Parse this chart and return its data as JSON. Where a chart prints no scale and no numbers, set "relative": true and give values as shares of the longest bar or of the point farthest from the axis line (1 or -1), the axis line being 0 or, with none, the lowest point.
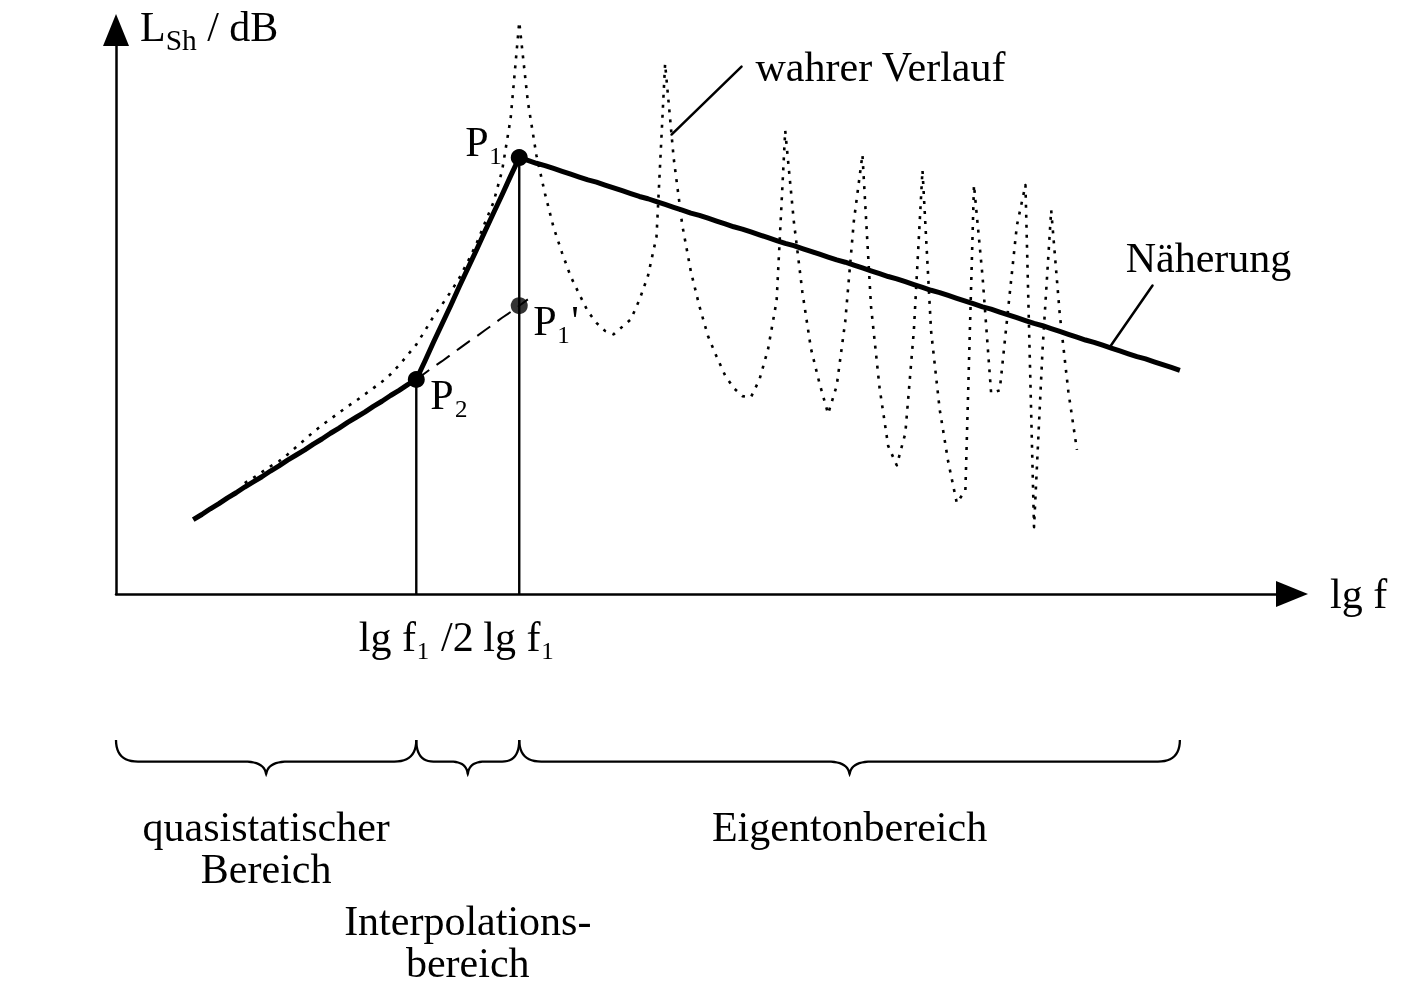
{
  "chart_data": {
    "type": "line",
    "relative": true,
    "xlabel": "lg f",
    "ylabel": "L$_{Sh}$ / dB",
    "categories": [
      null,
      null,
      null,
      null,
      null,
      null,
      null,
      null,
      null,
      null,
      null,
      null,
      null,
      null,
      null,
      null,
      null,
      null,
      null,
      null,
      null,
      null,
      null,
      null,
      null,
      null,
      null,
      null,
      null,
      null,
      null,
      null,
      null,
      null,
      null,
      "lg f₁ /2",
      null,
      null,
      null,
      null,
      null,
      null,
      null,
      null,
      null,
      null,
      null,
      "lg f₁",
      null,
      null,
      null,
      null,
      null,
      null,
      null,
      null,
      null,
      null,
      null,
      null,
      null,
      null,
      null,
      null,
      null,
      null,
      null,
      null,
      null,
      null,
      null,
      null,
      null,
      null,
      null,
      null,
      null,
      null,
      null,
      null,
      null,
      null,
      null,
      null,
      null,
      null,
      null,
      null,
      null,
      null,
      null,
      null,
      null,
      null,
      null,
      null,
      null,
      null,
      null,
      null,
      null,
      null,
      null,
      null,
      null,
      null,
      null,
      null,
      null,
      null,
      null,
      null,
      null,
      null,
      null,
      null,
      null,
      null,
      null,
      null,
      null,
      null,
      null,
      null,
      null,
      null,
      null,
      null,
      null,
      null,
      null,
      null,
      null,
      null,
      null,
      null,
      null,
      null,
      null
    ],
    "legend": false,
    "grid": false,
    "marker": "none",
    "series": [
      {
        "name": "Näherung",
        "color": "#000000",
        "line_style": "solid",
        "values": [
          null,
          null,
          null,
          null,
          null,
          null,
          null,
          null,
          null,
          0.13,
          0.139,
          0.149,
          0.158,
          0.168,
          0.177,
          0.187,
          0.196,
          0.205,
          0.215,
          0.224,
          0.234,
          0.243,
          0.252,
          0.262,
          0.271,
          0.281,
          0.29,
          0.3,
          0.309,
          0.318,
          0.328,
          0.337,
          0.347,
          0.356,
          0.366,
          0.375,
          0.407,
          0.44,
          0.472,
          0.504,
          0.537,
          0.569,
          0.601,
          0.634,
          0.666,
          0.698,
          0.731,
          0.763,
          0.758,
          0.753,
          0.749,
          0.744,
          0.739,
          0.734,
          0.729,
          0.724,
          0.72,
          0.715,
          0.71,
          0.705,
          0.7,
          0.695,
          0.691,
          0.686,
          0.681,
          0.676,
          0.671,
          0.666,
          0.662,
          0.657,
          0.652,
          0.647,
          0.642,
          0.638,
          0.633,
          0.628,
          0.623,
          0.618,
          0.613,
          0.609,
          0.604,
          0.599,
          0.594,
          0.589,
          0.584,
          0.58,
          0.575,
          0.57,
          0.565,
          0.56,
          0.555,
          0.551,
          0.546,
          0.541,
          0.536,
          0.531,
          0.527,
          0.522,
          0.517,
          0.512,
          0.507,
          0.502,
          0.498,
          0.493,
          0.488,
          0.483,
          0.478,
          0.473,
          0.469,
          0.464,
          0.459,
          0.454,
          0.449,
          0.444,
          0.44,
          0.435,
          0.43,
          0.425,
          0.42,
          0.415,
          0.411,
          0.406,
          0.401,
          0.396,
          0.391,
          null,
          null,
          null,
          null,
          null,
          null,
          null,
          null,
          null,
          null,
          null,
          null,
          null,
          null
        ]
      },
      {
        "name": "wahrer Verlauf",
        "color": "#000000",
        "line_style": "dotted",
        "values": [
          null,
          null,
          null,
          null,
          null,
          null,
          null,
          null,
          null,
          null,
          null,
          null,
          null,
          null,
          null,
          0.194,
          0.203,
          0.213,
          0.223,
          0.232,
          0.244,
          0.257,
          0.27,
          0.283,
          0.295,
          0.306,
          0.317,
          0.328,
          0.338,
          0.349,
          0.36,
          0.371,
          0.384,
          0.4,
          0.418,
          0.436,
          0.46,
          0.485,
          0.506,
          0.528,
          0.552,
          0.581,
          0.612,
          0.649,
          0.685,
          0.74,
          0.832,
          1,
          0.861,
          0.767,
          0.7,
          0.641,
          0.596,
          0.555,
          0.524,
          0.494,
          0.474,
          0.46,
          0.454,
          0.467,
          0.48,
          0.514,
          0.556,
          0.625,
          0.927,
          0.762,
          0.645,
          0.564,
          0.503,
          0.451,
          0.415,
          0.382,
          0.36,
          0.346,
          0.344,
          0.375,
          0.428,
          0.513,
          0.81,
          0.652,
          0.528,
          0.429,
          0.368,
          0.315,
          0.364,
          0.477,
          0.652,
          0.768,
          0.503,
          0.36,
          0.259,
          0.225,
          0.281,
          0.462,
          0.741,
          0.46,
          0.323,
          0.231,
          0.159,
          0.181,
          0.715,
          0.555,
          0.351,
          0.356,
          0.501,
          0.644,
          0.715,
          0.117,
          0.429,
          0.671,
          0.489,
          0.354,
          0.252,
          null,
          null,
          null,
          null,
          null,
          null,
          null,
          null,
          null,
          null,
          null,
          null,
          null,
          null,
          null,
          null,
          null,
          null,
          null,
          null,
          null,
          null,
          null,
          null,
          null,
          null
        ]
      },
      {
        "color": "#000000",
        "line_style": "dashed",
        "values": [
          null,
          null,
          null,
          null,
          null,
          null,
          null,
          null,
          null,
          null,
          null,
          null,
          null,
          null,
          null,
          null,
          null,
          null,
          null,
          null,
          null,
          null,
          null,
          null,
          null,
          null,
          null,
          null,
          null,
          null,
          null,
          null,
          null,
          null,
          null,
          0.375,
          0.386,
          0.397,
          0.407,
          0.418,
          0.429,
          0.44,
          0.45,
          0.461,
          0.472,
          0.483,
          0.493,
          0.504,
          0.515,
          null,
          null,
          null,
          null,
          null,
          null,
          null,
          null,
          null,
          null,
          null,
          null,
          null,
          null,
          null,
          null,
          null,
          null,
          null,
          null,
          null,
          null,
          null,
          null,
          null,
          null,
          null,
          null,
          null,
          null,
          null,
          null,
          null,
          null,
          null,
          null,
          null,
          null,
          null,
          null,
          null,
          null,
          null,
          null,
          null,
          null,
          null,
          null,
          null,
          null,
          null,
          null,
          null,
          null,
          null,
          null,
          null,
          null,
          null,
          null,
          null,
          null,
          null,
          null,
          null,
          null,
          null,
          null,
          null,
          null,
          null,
          null,
          null,
          null,
          null,
          null,
          null,
          null,
          null,
          null,
          null,
          null,
          null,
          null,
          null,
          null,
          null,
          null,
          null,
          null
        ]
      },
      {
        "type": "lollipop",
        "color": "#000000",
        "marker": "circle",
        "x": [
          "lg f₁ /2",
          "lg f₁"
        ],
        "values": [
          0.375,
          0.763
        ]
      },
      {
        "type": "scatter",
        "color": "#000000",
        "marker": "circle",
        "x": [
          "lg f₁"
        ],
        "values": [
          0.504
        ]
      }
    ],
    "annotations": [
      "quasistatischer Bereich",
      "Interpolations-bereich",
      "Eigentonbereich",
      {
        "text": "P₁",
        "x": "lg f₁",
        "y": 0.763
      },
      {
        "text": "P₂",
        "x": "lg f₁ /2",
        "y": 0.375
      },
      {
        "text": "P₁'",
        "x": "lg f₁",
        "y": 0.504
      }
    ]
  }
}
